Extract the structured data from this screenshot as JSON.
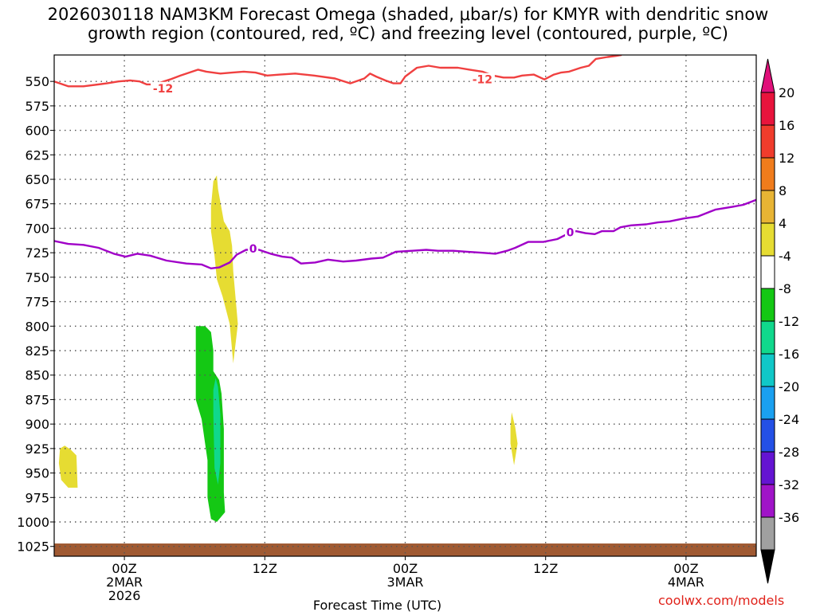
{
  "title": {
    "line1": "2026030118 NAM3KM Forecast Omega (shaded, μbar/s) for KMYR with dendritic snow",
    "line2": "growth region (contoured, red, ºC) and freezing level (contoured, purple, ºC)"
  },
  "credit": "coolwx.com/models",
  "chart_data": {
    "type": "heatmap",
    "title": "2026030118 NAM3KM Forecast Omega (shaded, μbar/s) for KMYR with dendritic snow growth region (contoured, red, ºC) and freezing level (contoured, purple, ºC)",
    "xlabel": "Forecast Time (UTC)",
    "ylabel": "",
    "x_unit": "hours after 2026-03-01 18Z",
    "xlim": [
      0,
      60
    ],
    "ylim": [
      1035,
      523
    ],
    "y_ticks": [
      550,
      575,
      600,
      625,
      650,
      675,
      700,
      725,
      750,
      775,
      800,
      825,
      850,
      875,
      900,
      925,
      950,
      975,
      1000,
      1025
    ],
    "x_ticks": [
      {
        "x": 6,
        "lines": [
          "00Z",
          "2MAR",
          "2026"
        ]
      },
      {
        "x": 18,
        "lines": [
          "12Z"
        ]
      },
      {
        "x": 30,
        "lines": [
          "00Z",
          "3MAR"
        ]
      },
      {
        "x": 42,
        "lines": [
          "12Z"
        ]
      },
      {
        "x": 54,
        "lines": [
          "00Z",
          "4MAR"
        ]
      }
    ],
    "grid": true,
    "colorbar": {
      "labels": [
        "20",
        "16",
        "12",
        "8",
        "4",
        "-4",
        "-8",
        "-12",
        "-16",
        "-20",
        "-24",
        "-28",
        "-32",
        "-36"
      ],
      "colors": [
        "#e8143c",
        "#f03c2c",
        "#f07c1c",
        "#e8b434",
        "#e6dc32",
        "#ffffff",
        "#14c814",
        "#10d88c",
        "#10c8c8",
        "#1aa0f0",
        "#2450e6",
        "#6414d2",
        "#a014c8",
        "#a0a0a0"
      ],
      "top_arrow_color": "#e0107a",
      "bottom_arrow_color": "#000000"
    },
    "series": [
      {
        "name": "-12 ºC isotherm (dendritic growth)",
        "color": "#f04040",
        "label": "-12",
        "label_points": [
          [
            9.3,
            557
          ],
          [
            36.6,
            548
          ]
        ],
        "points": [
          [
            0,
            550
          ],
          [
            1.2,
            555
          ],
          [
            2.5,
            555
          ],
          [
            4.5,
            552
          ],
          [
            5.5,
            550
          ],
          [
            6.5,
            549
          ],
          [
            7.3,
            550
          ],
          [
            7.9,
            553
          ],
          [
            8.6,
            553
          ],
          [
            9.9,
            548
          ],
          [
            10.8,
            544
          ],
          [
            12.3,
            538
          ],
          [
            13.0,
            540
          ],
          [
            14.2,
            542
          ],
          [
            15.2,
            541
          ],
          [
            16.2,
            540
          ],
          [
            17.2,
            541
          ],
          [
            18.2,
            544
          ],
          [
            19.3,
            543
          ],
          [
            20.6,
            542
          ],
          [
            22.2,
            544
          ],
          [
            24.0,
            547
          ],
          [
            25.3,
            552
          ],
          [
            26.5,
            547
          ],
          [
            27.0,
            542
          ],
          [
            27.5,
            545
          ],
          [
            28.3,
            549
          ],
          [
            29.0,
            552
          ],
          [
            29.6,
            552
          ],
          [
            30.0,
            545
          ],
          [
            31.0,
            536
          ],
          [
            32.0,
            534
          ],
          [
            33.0,
            536
          ],
          [
            34.5,
            536
          ],
          [
            35.5,
            538
          ],
          [
            36.6,
            540
          ],
          [
            37.5,
            544
          ],
          [
            38.4,
            546
          ],
          [
            39.3,
            546
          ],
          [
            40.0,
            544
          ],
          [
            41.0,
            543
          ],
          [
            41.9,
            548
          ],
          [
            42.7,
            543
          ],
          [
            43.3,
            541
          ],
          [
            44.0,
            540
          ],
          [
            45.0,
            536
          ],
          [
            45.7,
            534
          ],
          [
            46.3,
            527
          ],
          [
            47.3,
            525
          ],
          [
            48.0,
            524
          ],
          [
            48.5,
            523
          ]
        ]
      },
      {
        "name": "0 ºC freezing level",
        "color": "#a000c8",
        "label": "0",
        "label_points": [
          [
            17.0,
            721
          ],
          [
            44.1,
            704
          ]
        ],
        "points": [
          [
            0,
            713
          ],
          [
            1.2,
            716
          ],
          [
            2.5,
            717
          ],
          [
            3.8,
            720
          ],
          [
            5.1,
            726
          ],
          [
            6.1,
            729
          ],
          [
            7.1,
            726
          ],
          [
            8.2,
            728
          ],
          [
            9.6,
            733
          ],
          [
            11.3,
            736
          ],
          [
            12.6,
            737
          ],
          [
            13.4,
            741
          ],
          [
            14.1,
            740
          ],
          [
            15.0,
            735
          ],
          [
            15.6,
            727
          ],
          [
            16.4,
            722
          ],
          [
            17.5,
            722
          ],
          [
            18.5,
            726
          ],
          [
            19.5,
            729
          ],
          [
            20.3,
            730
          ],
          [
            21.1,
            736
          ],
          [
            22.3,
            735
          ],
          [
            23.4,
            732
          ],
          [
            24.7,
            734
          ],
          [
            25.8,
            733
          ],
          [
            27.1,
            731
          ],
          [
            28.1,
            730
          ],
          [
            29.2,
            724
          ],
          [
            30.6,
            723
          ],
          [
            31.8,
            722
          ],
          [
            32.8,
            723
          ],
          [
            34.1,
            723
          ],
          [
            35.3,
            724
          ],
          [
            36.6,
            725
          ],
          [
            37.7,
            726
          ],
          [
            38.7,
            723
          ],
          [
            39.4,
            720
          ],
          [
            40.5,
            714
          ],
          [
            41.8,
            714
          ],
          [
            43.0,
            711
          ],
          [
            44.0,
            705
          ],
          [
            44.6,
            703
          ],
          [
            45.4,
            705
          ],
          [
            46.2,
            706
          ],
          [
            46.8,
            703
          ],
          [
            47.8,
            703
          ],
          [
            48.4,
            699
          ],
          [
            49.3,
            697
          ],
          [
            50.6,
            696
          ],
          [
            51.6,
            694
          ],
          [
            52.6,
            693
          ],
          [
            53.8,
            690
          ],
          [
            55.0,
            688
          ],
          [
            56.5,
            681
          ],
          [
            58.0,
            678
          ],
          [
            58.9,
            676
          ],
          [
            60.0,
            671
          ]
        ]
      }
    ],
    "shaded_regions": [
      {
        "name": "omega 4-8 (upper)",
        "value_range": [
          4,
          8
        ],
        "color": "#e6dc32",
        "polygon": [
          [
            13.9,
            646
          ],
          [
            14.0,
            660
          ],
          [
            14.5,
            693
          ],
          [
            15.0,
            703
          ],
          [
            15.2,
            718
          ],
          [
            15.3,
            744
          ],
          [
            15.7,
            798
          ],
          [
            15.3,
            838
          ],
          [
            15.0,
            798
          ],
          [
            14.4,
            770
          ],
          [
            13.9,
            752
          ],
          [
            13.7,
            728
          ],
          [
            13.4,
            703
          ],
          [
            13.4,
            678
          ],
          [
            13.6,
            652
          ]
        ]
      },
      {
        "name": "omega 4-8 (lower-left)",
        "value_range": [
          4,
          8
        ],
        "color": "#e6dc32",
        "polygon": [
          [
            0.5,
            925
          ],
          [
            0.9,
            922
          ],
          [
            1.4,
            926
          ],
          [
            1.9,
            932
          ],
          [
            2.0,
            965
          ],
          [
            1.2,
            965
          ],
          [
            0.6,
            957
          ],
          [
            0.4,
            940
          ]
        ]
      },
      {
        "name": "omega 4-8 (small)",
        "value_range": [
          4,
          8
        ],
        "color": "#e6dc32",
        "polygon": [
          [
            39.1,
            888
          ],
          [
            39.4,
            903
          ],
          [
            39.6,
            920
          ],
          [
            39.3,
            942
          ],
          [
            39.0,
            920
          ],
          [
            39.0,
            903
          ]
        ]
      },
      {
        "name": "omega -4 to -8",
        "value_range": [
          -8,
          -4
        ],
        "color": "#14c814",
        "polygon": [
          [
            12.1,
            800
          ],
          [
            12.9,
            800
          ],
          [
            13.4,
            806
          ],
          [
            13.6,
            825
          ],
          [
            13.6,
            846
          ],
          [
            14.1,
            855
          ],
          [
            14.3,
            869
          ],
          [
            14.5,
            905
          ],
          [
            14.5,
            970
          ],
          [
            14.6,
            990
          ],
          [
            13.9,
            1000
          ],
          [
            13.4,
            997
          ],
          [
            13.1,
            975
          ],
          [
            13.1,
            937
          ],
          [
            12.6,
            895
          ],
          [
            12.1,
            875
          ]
        ]
      },
      {
        "name": "omega -8 to -12",
        "value_range": [
          -12,
          -8
        ],
        "color": "#10d88c",
        "polygon": [
          [
            13.8,
            853
          ],
          [
            14.0,
            862
          ],
          [
            14.2,
            890
          ],
          [
            14.2,
            940
          ],
          [
            14.0,
            962
          ],
          [
            13.7,
            945
          ],
          [
            13.6,
            890
          ],
          [
            13.6,
            865
          ]
        ]
      }
    ],
    "terrain": {
      "color": "#a05a32",
      "surface_pressure": 1022
    }
  }
}
